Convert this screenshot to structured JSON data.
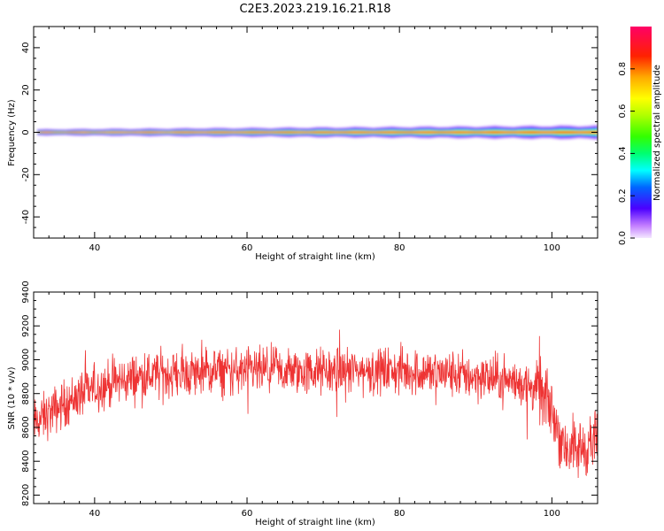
{
  "title": "C2E3.2023.219.16.21.R18",
  "chart_data": [
    {
      "type": "heatmap",
      "xlabel": "Height of straight line (km)",
      "ylabel": "Frequency (Hz)",
      "xlim": [
        32,
        106
      ],
      "ylim": [
        -50,
        50
      ],
      "xticks": [
        40,
        60,
        80,
        100
      ],
      "yticks": [
        -40,
        -20,
        0,
        20,
        40
      ],
      "description_of_values": "Narrow spectral line centred at 0 Hz; red core with green/cyan shoulders widening with height, violet halo ±~3 Hz",
      "line_center_hz": 0,
      "colorbar": {
        "label": "Normalized spectral amplitude",
        "range": [
          0.0,
          1.0
        ],
        "ticks": [
          0.0,
          0.2,
          0.4,
          0.6,
          0.8
        ],
        "tick_labels": [
          "0.0",
          "0.2",
          "0.4",
          "0.6",
          "0.8"
        ]
      },
      "grid": false
    },
    {
      "type": "line",
      "xlabel": "Height of straight line (km)",
      "ylabel": "SNR (10 * v/v)",
      "xlim": [
        32,
        106
      ],
      "ylim": [
        8150,
        9400
      ],
      "xticks": [
        40,
        60,
        80,
        100
      ],
      "yticks": [
        8200,
        8400,
        8600,
        8800,
        9000,
        9200,
        9400
      ],
      "color": "#ee3333",
      "series": [
        {
          "x": [
            32,
            34,
            36,
            38,
            40,
            42,
            44,
            46,
            48,
            50,
            52,
            54,
            56,
            58,
            60,
            62,
            64,
            66,
            68,
            70,
            72,
            74,
            76,
            78,
            80,
            82,
            84,
            86,
            88,
            90,
            92,
            94,
            96,
            98,
            99,
            100,
            101,
            102,
            103,
            104,
            105,
            106
          ],
          "values": [
            8620,
            8680,
            8740,
            8790,
            8830,
            8860,
            8880,
            8900,
            8910,
            8915,
            8920,
            8925,
            8930,
            8930,
            8930,
            8930,
            8930,
            8928,
            8928,
            8930,
            8932,
            8935,
            8935,
            8935,
            8933,
            8930,
            8925,
            8920,
            8910,
            8900,
            8890,
            8880,
            8860,
            8830,
            8780,
            8700,
            8560,
            8480,
            8460,
            8480,
            8500,
            8520
          ],
          "noise_amplitude": 130
        }
      ],
      "grid": false
    }
  ]
}
